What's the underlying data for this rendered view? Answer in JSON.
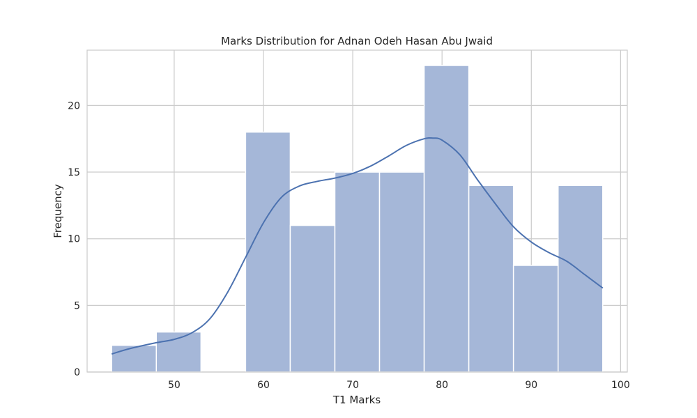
{
  "chart_data": {
    "type": "bar",
    "title": "Marks Distribution for Adnan Odeh Hasan Abu Jwaid",
    "xlabel": "T1 Marks",
    "ylabel": "Frequency",
    "xlim": [
      40.25,
      100.75
    ],
    "ylim": [
      0,
      24.15
    ],
    "x_ticks": [
      50,
      60,
      70,
      80,
      90,
      100
    ],
    "y_ticks": [
      0,
      5,
      10,
      15,
      20
    ],
    "grid": true,
    "bins": [
      {
        "start": 43,
        "end": 48,
        "count": 2
      },
      {
        "start": 48,
        "end": 53,
        "count": 3
      },
      {
        "start": 53,
        "end": 58,
        "count": 0
      },
      {
        "start": 58,
        "end": 63,
        "count": 18
      },
      {
        "start": 63,
        "end": 68,
        "count": 11
      },
      {
        "start": 68,
        "end": 73,
        "count": 15
      },
      {
        "start": 73,
        "end": 78,
        "count": 15
      },
      {
        "start": 78,
        "end": 83,
        "count": 23
      },
      {
        "start": 83,
        "end": 88,
        "count": 14
      },
      {
        "start": 88,
        "end": 93,
        "count": 8
      },
      {
        "start": 93,
        "end": 98,
        "count": 14
      }
    ],
    "kde": {
      "x": [
        43,
        45,
        48,
        50,
        52,
        54,
        56,
        58,
        60,
        62,
        64,
        66,
        68,
        70,
        72,
        74,
        76,
        78,
        79,
        80,
        82,
        84,
        86,
        88,
        90,
        92,
        94,
        96,
        98
      ],
      "y": [
        1.35,
        1.75,
        2.2,
        2.45,
        2.95,
        4.0,
        6.0,
        8.6,
        11.2,
        13.1,
        13.95,
        14.3,
        14.55,
        14.9,
        15.45,
        16.2,
        17.0,
        17.5,
        17.55,
        17.4,
        16.3,
        14.4,
        12.6,
        10.9,
        9.75,
        8.95,
        8.3,
        7.3,
        6.3
      ]
    },
    "colors": {
      "bar_fill": "#a5b7d8",
      "bar_edge": "#ffffff",
      "kde_line": "#4c72b0",
      "grid": "#cccccc",
      "frame": "#cccccc"
    }
  }
}
